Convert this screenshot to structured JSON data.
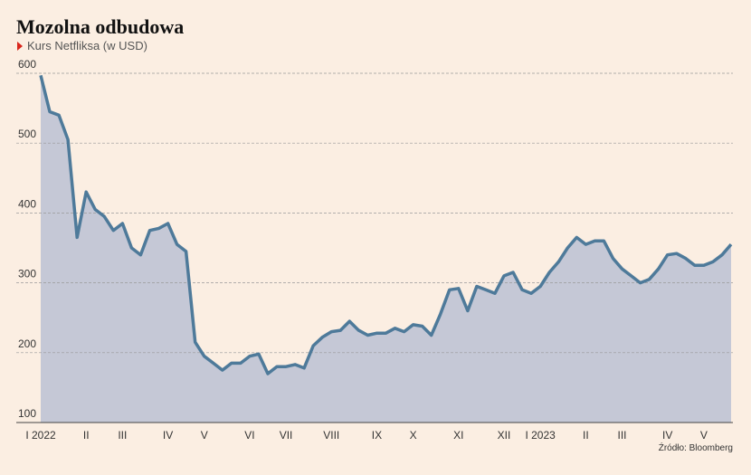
{
  "chart_data": {
    "type": "line",
    "title": "Mozolna odbudowa",
    "subtitle": "Kurs Netfliksa (w USD)",
    "source": "Źródło: Bloomberg",
    "categories": [
      "I 2022",
      null,
      null,
      null,
      null,
      "II",
      null,
      null,
      null,
      "III",
      null,
      null,
      null,
      null,
      "IV",
      null,
      null,
      null,
      "V",
      null,
      null,
      null,
      null,
      "VI",
      null,
      null,
      null,
      "VII",
      null,
      null,
      null,
      null,
      "VIII",
      null,
      null,
      null,
      null,
      "IX",
      null,
      null,
      null,
      "X",
      null,
      null,
      null,
      null,
      "XI",
      null,
      null,
      null,
      null,
      "XII",
      null,
      null,
      null,
      "I 2023",
      null,
      null,
      null,
      null,
      "II",
      null,
      null,
      null,
      "III",
      null,
      null,
      null,
      null,
      "IV",
      null,
      null,
      null,
      "V",
      null,
      null,
      null
    ],
    "values": [
      597,
      545,
      540,
      505,
      365,
      430,
      405,
      395,
      375,
      385,
      350,
      340,
      375,
      378,
      385,
      355,
      345,
      215,
      195,
      185,
      175,
      185,
      185,
      195,
      198,
      170,
      180,
      180,
      183,
      178,
      210,
      222,
      230,
      232,
      245,
      232,
      225,
      228,
      228,
      235,
      230,
      240,
      238,
      225,
      255,
      290,
      292,
      260,
      295,
      290,
      285,
      310,
      315,
      290,
      285,
      295,
      315,
      330,
      350,
      365,
      355,
      360,
      360,
      335,
      320,
      310,
      300,
      305,
      320,
      340,
      342,
      335,
      325,
      325,
      330,
      340,
      355
    ],
    "color": "#4e7a9a",
    "fill": "#c5c8d6",
    "ylim": [
      100,
      600
    ],
    "yticks": [
      100,
      200,
      300,
      400,
      500,
      600
    ],
    "grid": true
  }
}
